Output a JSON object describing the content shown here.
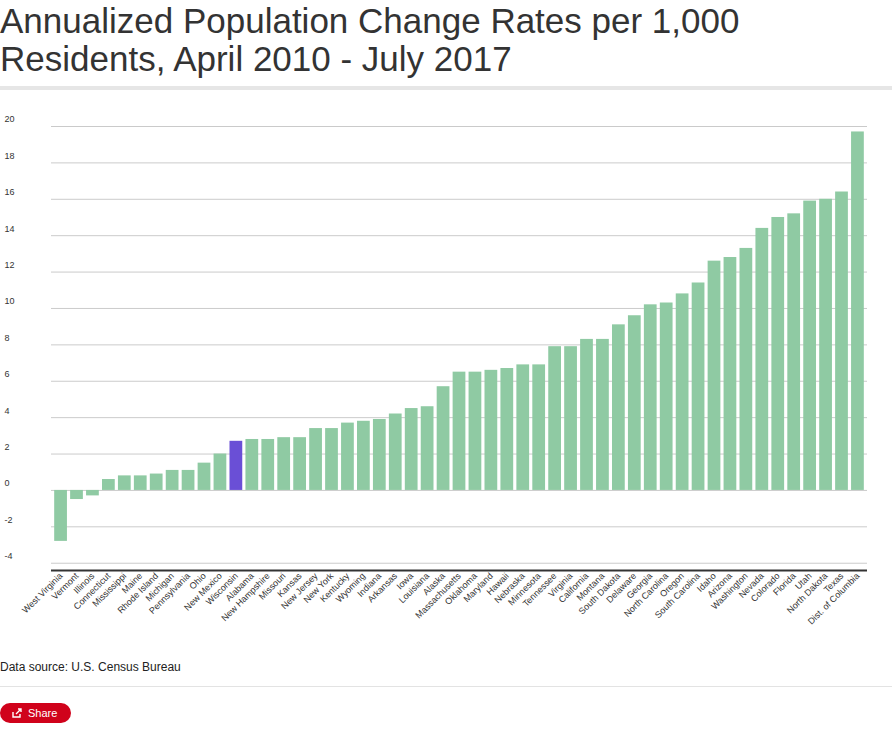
{
  "chart_data": {
    "type": "bar",
    "title": "Annualized Population Change Rates per 1,000 Residents, April 2010 - July 2017",
    "caption": "Data source: U.S. Census Bureau",
    "button": "Share",
    "categories": [
      "West Virginia",
      "Vermont",
      "Illinois",
      "Connecticut",
      "Mississippi",
      "Maine",
      "Rhode Island",
      "Michigan",
      "Pennsylvania",
      "Ohio",
      "New Mexico",
      "Wisconsin",
      "Alabama",
      "New Hampshire",
      "Missouri",
      "Kansas",
      "New Jersey",
      "New York",
      "Kentucky",
      "Wyoming",
      "Indiana",
      "Arkansas",
      "Iowa",
      "Louisiana",
      "Alaska",
      "Massachusetts",
      "Oklahoma",
      "Maryland",
      "Hawaii",
      "Nebraska",
      "Minnesota",
      "Tennessee",
      "Virginia",
      "California",
      "Montana",
      "South Dakota",
      "Delaware",
      "Georgia",
      "North Carolina",
      "Oregon",
      "South Carolina",
      "Idaho",
      "Arizona",
      "Washington",
      "Nevada",
      "Colorado",
      "Florida",
      "Utah",
      "North Dakota",
      "Texas",
      "Dist. of Columbia"
    ],
    "values": [
      -2.8,
      -0.5,
      -0.3,
      0.6,
      0.8,
      0.8,
      0.9,
      1.1,
      1.1,
      1.5,
      2.0,
      2.7,
      2.8,
      2.8,
      2.9,
      2.9,
      3.4,
      3.4,
      3.7,
      3.8,
      3.9,
      4.2,
      4.5,
      4.6,
      5.7,
      6.5,
      6.5,
      6.6,
      6.7,
      6.9,
      6.9,
      7.9,
      7.9,
      8.3,
      8.3,
      9.1,
      9.6,
      10.2,
      10.3,
      10.8,
      11.4,
      12.6,
      12.8,
      13.3,
      14.4,
      15.0,
      15.2,
      15.9,
      16.0,
      16.4,
      19.7
    ],
    "colors": [
      "#8fcaa3",
      "#8fcaa3",
      "#8fcaa3",
      "#8fcaa3",
      "#8fcaa3",
      "#8fcaa3",
      "#8fcaa3",
      "#8fcaa3",
      "#8fcaa3",
      "#8fcaa3",
      "#8fcaa3",
      "#6a4fd6",
      "#8fcaa3",
      "#8fcaa3",
      "#8fcaa3",
      "#8fcaa3",
      "#8fcaa3",
      "#8fcaa3",
      "#8fcaa3",
      "#8fcaa3",
      "#8fcaa3",
      "#8fcaa3",
      "#8fcaa3",
      "#8fcaa3",
      "#8fcaa3",
      "#8fcaa3",
      "#8fcaa3",
      "#8fcaa3",
      "#8fcaa3",
      "#8fcaa3",
      "#8fcaa3",
      "#8fcaa3",
      "#8fcaa3",
      "#8fcaa3",
      "#8fcaa3",
      "#8fcaa3",
      "#8fcaa3",
      "#8fcaa3",
      "#8fcaa3",
      "#8fcaa3",
      "#8fcaa3",
      "#8fcaa3",
      "#8fcaa3",
      "#8fcaa3",
      "#8fcaa3",
      "#8fcaa3",
      "#8fcaa3",
      "#8fcaa3",
      "#8fcaa3",
      "#8fcaa3",
      "#8fcaa3"
    ],
    "ylim": [
      -4.4,
      20
    ],
    "yticks": [
      -4,
      -2,
      0,
      2,
      4,
      6,
      8,
      10,
      12,
      14,
      16,
      18,
      20
    ],
    "grid": true
  }
}
